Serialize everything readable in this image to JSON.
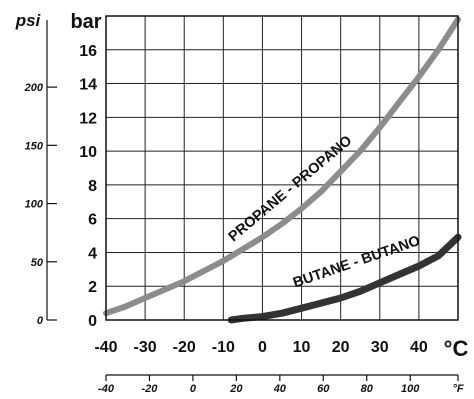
{
  "chart_data": {
    "type": "line",
    "xlabel": "°C",
    "x2label": "°F",
    "ylabel": "bar",
    "y2label": "psi",
    "xlim": [
      -40,
      50
    ],
    "ylim": [
      0,
      18
    ],
    "grid": true,
    "x_ticks": [
      -40,
      -30,
      -20,
      -10,
      0,
      10,
      20,
      30,
      40
    ],
    "x_tick_labels": [
      "-40",
      "-30",
      "-20",
      "-10",
      "0",
      "10",
      "20",
      "30",
      "40"
    ],
    "y_ticks": [
      0,
      2,
      4,
      6,
      8,
      10,
      12,
      14,
      16
    ],
    "y_tick_labels": [
      "0",
      "2",
      "4",
      "6",
      "8",
      "10",
      "12",
      "14",
      "16"
    ],
    "f_ticks": [
      -40,
      -20,
      0,
      20,
      40,
      60,
      80,
      100
    ],
    "f_tick_labels": [
      "-40",
      "-20",
      "0",
      "20",
      "40",
      "60",
      "80",
      "100"
    ],
    "psi_ticks": [
      0,
      50,
      100,
      150,
      200
    ],
    "psi_tick_labels": [
      "0",
      "50",
      "100",
      "150",
      "200"
    ],
    "series": [
      {
        "name": "PROPANE - PROPANO",
        "color": "#8c8c8c",
        "x": [
          -40,
          -35,
          -30,
          -25,
          -20,
          -15,
          -10,
          -5,
          0,
          5,
          10,
          15,
          20,
          25,
          30,
          35,
          40,
          45,
          50
        ],
        "y": [
          0.4,
          0.8,
          1.3,
          1.8,
          2.3,
          2.9,
          3.5,
          4.2,
          4.9,
          5.7,
          6.6,
          7.6,
          8.8,
          10.0,
          11.4,
          12.9,
          14.4,
          16.0,
          17.8
        ]
      },
      {
        "name": "BUTANE - BUTANO",
        "color": "#333333",
        "x": [
          -8,
          -5,
          0,
          5,
          10,
          15,
          20,
          25,
          30,
          35,
          40,
          45,
          50
        ],
        "y": [
          0.0,
          0.1,
          0.2,
          0.4,
          0.7,
          1.0,
          1.3,
          1.7,
          2.2,
          2.7,
          3.2,
          3.8,
          4.9
        ]
      }
    ]
  }
}
